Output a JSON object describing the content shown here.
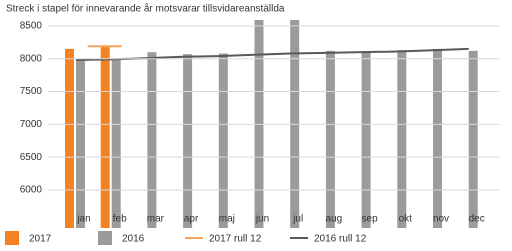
{
  "chart_data": {
    "type": "bar",
    "title": "Streck i stapel för innevarande år motsvarar tillsvidareanställda",
    "categories": [
      "jan",
      "feb",
      "mar",
      "apr",
      "maj",
      "jun",
      "jul",
      "aug",
      "sep",
      "okt",
      "nov",
      "dec"
    ],
    "series": [
      {
        "name": "2017",
        "color": "#f58220",
        "type": "bar",
        "values": [
          8150,
          8180,
          null,
          null,
          null,
          null,
          null,
          null,
          null,
          null,
          null,
          null
        ]
      },
      {
        "name": "2016",
        "color": "#9b9b9b",
        "type": "bar",
        "values": [
          7990,
          8000,
          8100,
          8070,
          8080,
          8600,
          8600,
          8120,
          8110,
          8130,
          8150,
          8120
        ]
      },
      {
        "name": "2017 rull 12",
        "color": "#f7a35c",
        "type": "line",
        "values": [
          null,
          8190,
          null,
          null,
          null,
          null,
          null,
          null,
          null,
          null,
          null,
          null
        ]
      },
      {
        "name": "2016 rull 12",
        "color": "#595959",
        "type": "line",
        "values": [
          7980,
          7990,
          8010,
          8030,
          8040,
          8060,
          8080,
          8090,
          8100,
          8110,
          8130,
          8150
        ]
      }
    ],
    "ylim": [
      5420,
      8560
    ],
    "yticks": [
      6000,
      6500,
      7000,
      7500,
      8000,
      8500
    ],
    "grid": true
  }
}
